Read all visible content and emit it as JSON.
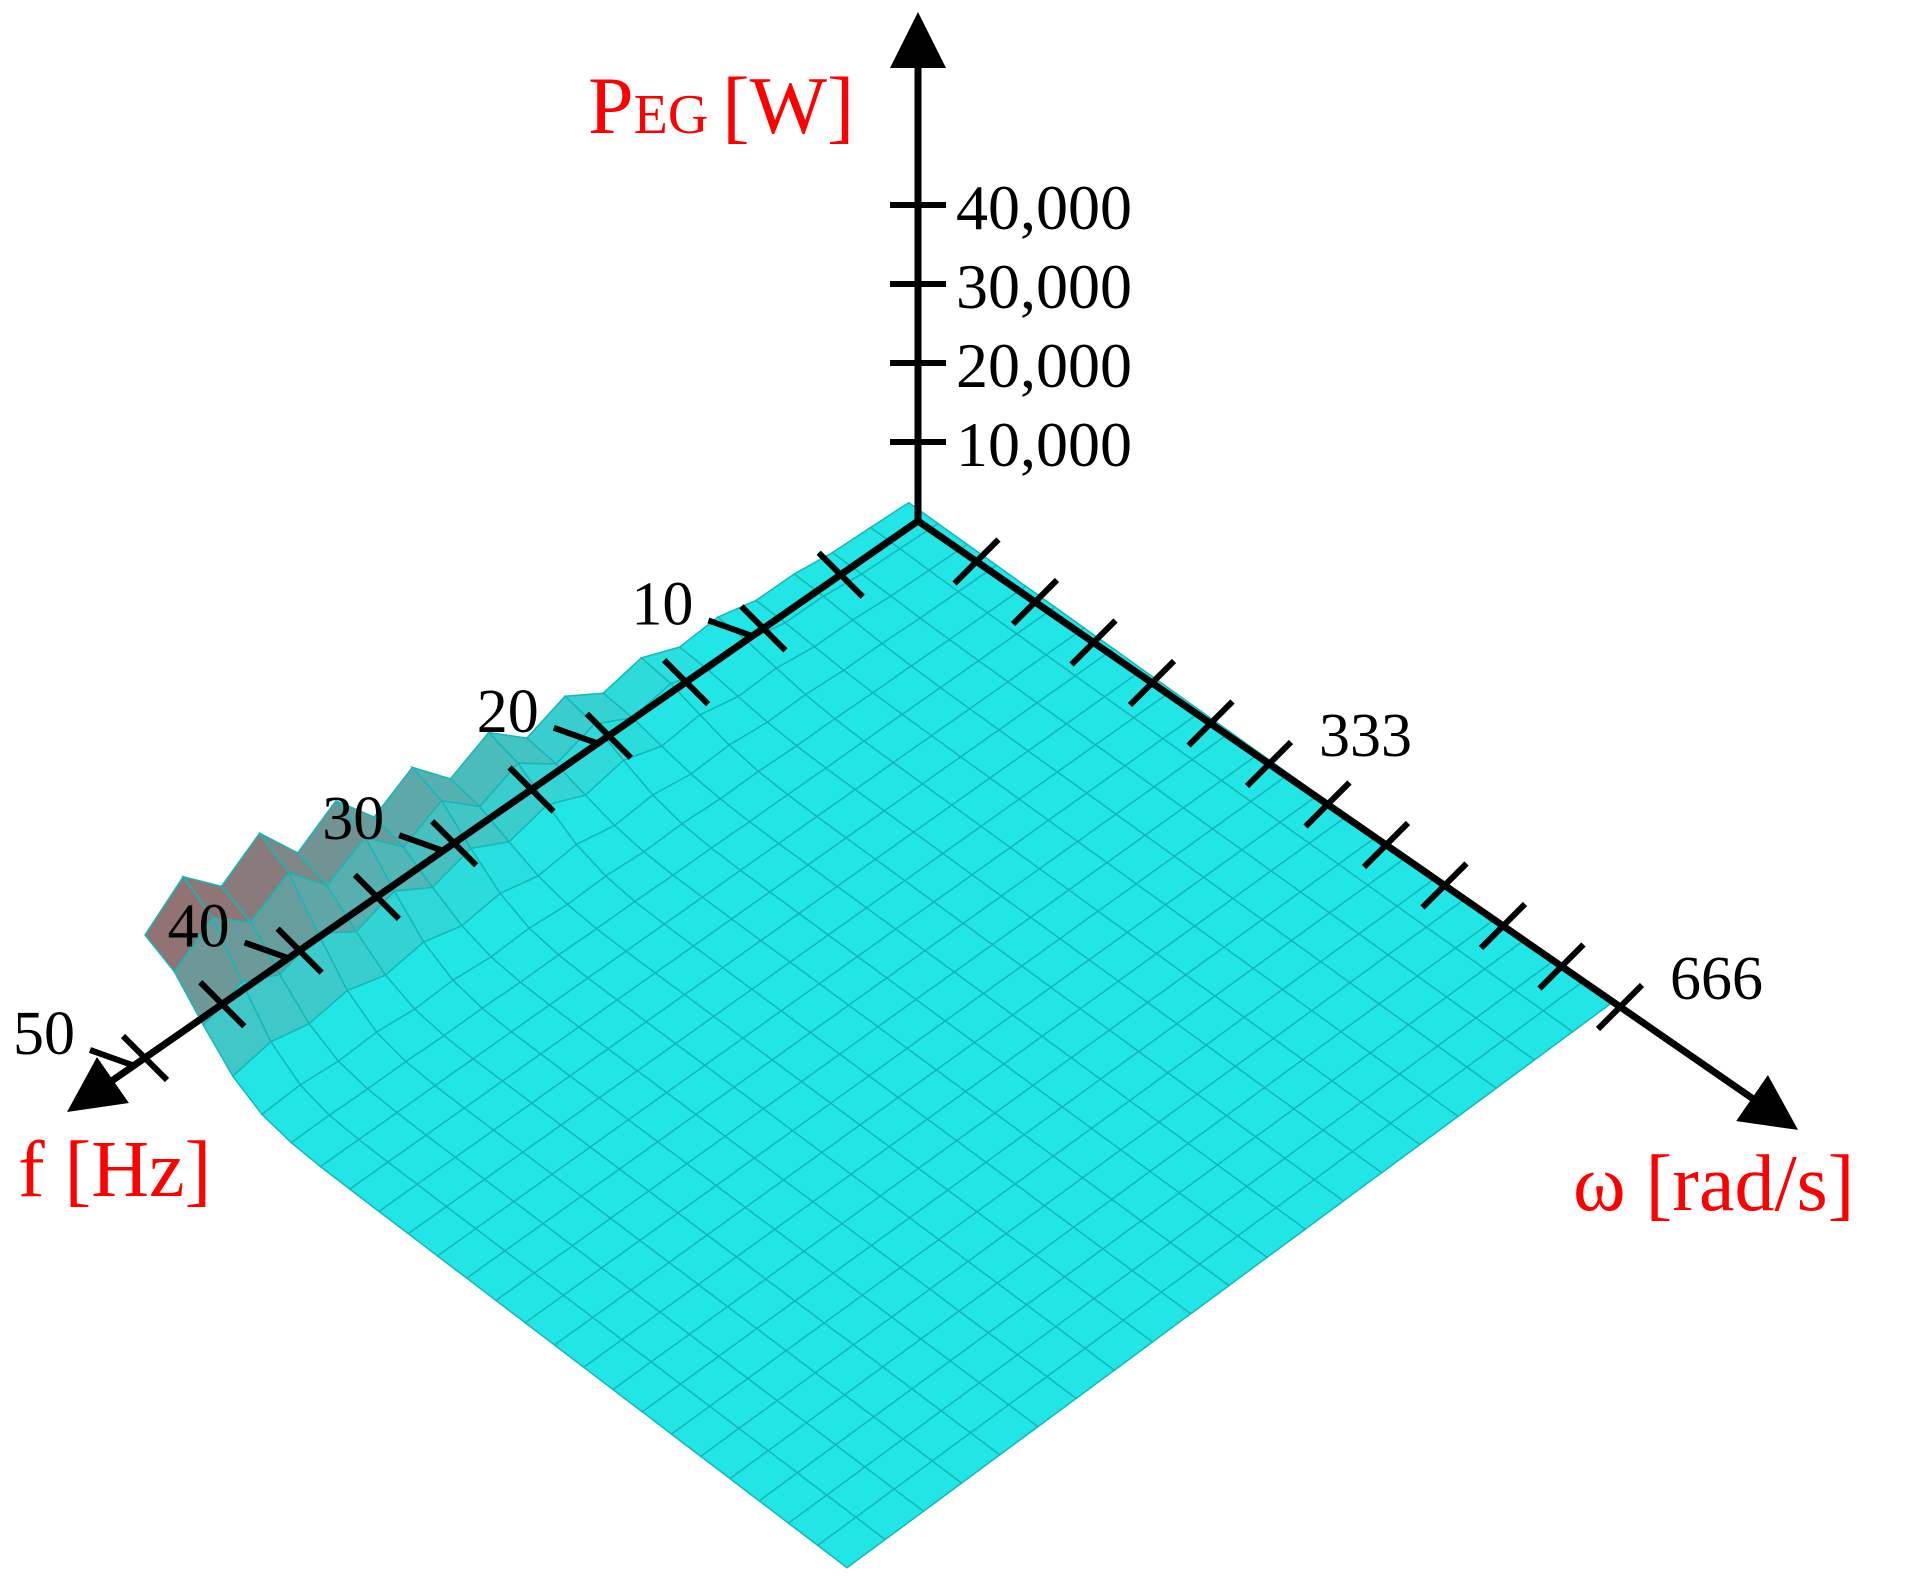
{
  "chart_data": {
    "type": "surface3d",
    "title": "",
    "colors": {
      "axis": "#000000",
      "axis_title": "#ff0000",
      "surface_low": "#22e6e6",
      "surface_high": "#c83a3a",
      "surface_grid": "#14b8b8"
    },
    "z_axis": {
      "label_main": "P",
      "label_sub": "EG",
      "label_unit": "[W]",
      "ticks": [
        10000,
        20000,
        30000,
        40000
      ],
      "tick_labels": [
        "10,000",
        "20,000",
        "30,000",
        "40,000"
      ],
      "range": [
        0,
        45000
      ]
    },
    "f_axis": {
      "label": "f [Hz]",
      "ticks": [
        10,
        20,
        30,
        40,
        50
      ],
      "tick_labels": [
        "10",
        "20",
        "30",
        "40",
        "50"
      ],
      "minor_ticks": [
        5,
        15,
        25,
        35,
        45
      ],
      "range": [
        0,
        50
      ]
    },
    "w_axis": {
      "label": "ω [rad/s]",
      "ticks": [
        333,
        666
      ],
      "tick_labels": [
        "333",
        "666"
      ],
      "minor_ticks": [
        55.5,
        111,
        166.5,
        222,
        277.5,
        388.5,
        444,
        499.5,
        555,
        610.5
      ],
      "range": [
        0,
        666
      ]
    },
    "surface": {
      "description_peak_f": 45,
      "description_peak_power": 22000,
      "base_power": 5000,
      "grid": true
    }
  }
}
